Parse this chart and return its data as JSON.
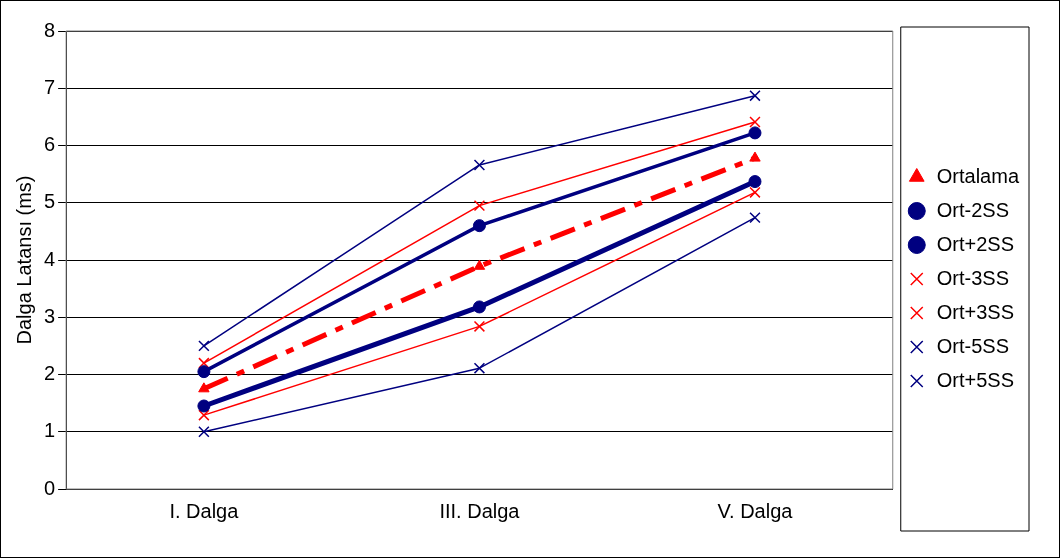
{
  "chart_data": {
    "type": "line",
    "ylabel": "Dalga Latansı (ms)",
    "categories": [
      "I. Dalga",
      "III. Dalga",
      "V. Dalga"
    ],
    "ylim": [
      0,
      8
    ],
    "yticks": [
      0,
      1,
      2,
      3,
      4,
      5,
      6,
      7,
      8
    ],
    "grid": "y",
    "legend": "right",
    "series": [
      {
        "name": "Ortalama",
        "color": "#ff0000",
        "marker": "triangle",
        "line_style": "dashed",
        "values": [
          1.75,
          3.89,
          5.78
        ]
      },
      {
        "name": "Ort-2SS",
        "color": "#000080",
        "marker": "circle",
        "values": [
          1.45,
          3.18,
          5.37
        ]
      },
      {
        "name": "Ort+2SS",
        "color": "#000080",
        "marker": "circle",
        "values": [
          2.05,
          4.6,
          6.22
        ]
      },
      {
        "name": "Ort-3SS",
        "color": "#ff0000",
        "marker": "cross",
        "values": [
          1.29,
          2.84,
          5.18
        ]
      },
      {
        "name": "Ort+3SS",
        "color": "#ff0000",
        "marker": "cross",
        "values": [
          2.2,
          4.95,
          6.41
        ]
      },
      {
        "name": "Ort-5SS",
        "color": "#000080",
        "marker": "cross",
        "values": [
          1.0,
          2.11,
          4.74
        ]
      },
      {
        "name": "Ort+5SS",
        "color": "#000080",
        "marker": "cross",
        "values": [
          2.5,
          5.66,
          6.87
        ]
      }
    ]
  }
}
